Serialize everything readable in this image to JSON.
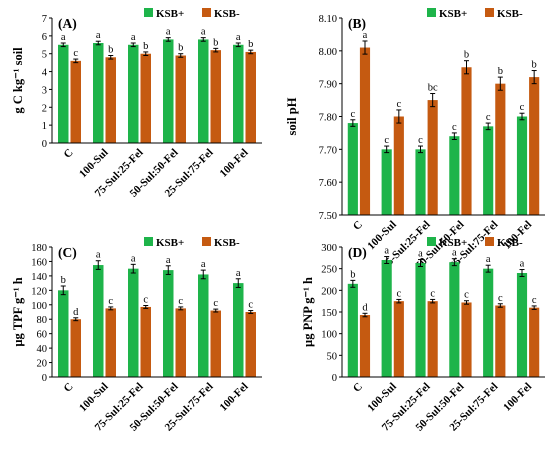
{
  "colors": {
    "ksb_plus": "#1eb44a",
    "ksb_minus": "#c55a11"
  },
  "categories": [
    "C",
    "100-Sul",
    "75-Sul:25-Fel",
    "50-Sul:50-Fel",
    "25-Sul:75-Fel",
    "100-Fel"
  ],
  "chart_data": [
    {
      "panel": "(A)",
      "type": "bar",
      "ylabel": "g C kg⁻¹ soil",
      "ylim": [
        0,
        7
      ],
      "yticks": [
        "0",
        "1",
        "2",
        "3",
        "4",
        "5",
        "6",
        "7"
      ],
      "legend_position": "top-right",
      "series": [
        {
          "name": "KSB+",
          "values": [
            5.5,
            5.6,
            5.5,
            5.8,
            5.8,
            5.5
          ],
          "errors": [
            0.1,
            0.1,
            0.1,
            0.1,
            0.1,
            0.1
          ],
          "letters": [
            "a",
            "a",
            "a",
            "a",
            "a",
            "a"
          ]
        },
        {
          "name": "KSB-",
          "values": [
            4.6,
            4.8,
            5.0,
            4.9,
            5.2,
            5.1
          ],
          "errors": [
            0.1,
            0.1,
            0.1,
            0.1,
            0.1,
            0.1
          ],
          "letters": [
            "c",
            "b",
            "b",
            "b",
            "b",
            "b"
          ]
        }
      ]
    },
    {
      "panel": "(B)",
      "type": "bar",
      "ylabel": "soil pH",
      "ylim": [
        7.5,
        8.1
      ],
      "yticks": [
        "7.50",
        "7.60",
        "7.70",
        "7.80",
        "7.90",
        "8.00",
        "8.10"
      ],
      "legend_position": "top-right",
      "series": [
        {
          "name": "KSB+",
          "values": [
            7.78,
            7.7,
            7.7,
            7.74,
            7.77,
            7.8
          ],
          "errors": [
            0.01,
            0.01,
            0.01,
            0.01,
            0.01,
            0.01
          ],
          "letters": [
            "c",
            "c",
            "c",
            "c",
            "c",
            "c"
          ]
        },
        {
          "name": "KSB-",
          "values": [
            8.01,
            7.8,
            7.85,
            7.95,
            7.9,
            7.92
          ],
          "errors": [
            0.02,
            0.02,
            0.02,
            0.02,
            0.02,
            0.02
          ],
          "letters": [
            "a",
            "c",
            "bc",
            "b",
            "b",
            "b"
          ]
        }
      ]
    },
    {
      "panel": "(C)",
      "type": "bar",
      "ylabel": "µg TPF g⁻¹ h",
      "ylim": [
        0,
        180
      ],
      "yticks": [
        "0",
        "20",
        "40",
        "60",
        "80",
        "100",
        "120",
        "140",
        "160",
        "180"
      ],
      "legend_position": "top-right",
      "series": [
        {
          "name": "KSB+",
          "values": [
            120,
            155,
            150,
            148,
            142,
            130
          ],
          "errors": [
            6,
            6,
            6,
            6,
            6,
            6
          ],
          "letters": [
            "b",
            "a",
            "a",
            "a",
            "a",
            "a"
          ]
        },
        {
          "name": "KSB-",
          "values": [
            80,
            95,
            97,
            95,
            92,
            90
          ],
          "errors": [
            2,
            2,
            2,
            2,
            2,
            2
          ],
          "letters": [
            "d",
            "c",
            "c",
            "c",
            "c",
            "c"
          ]
        }
      ]
    },
    {
      "panel": "(D)",
      "type": "bar",
      "ylabel": "µg PNP g⁻¹ h",
      "ylim": [
        0,
        300
      ],
      "yticks": [
        "0",
        "50",
        "100",
        "150",
        "200",
        "250",
        "300"
      ],
      "legend_position": "top-right",
      "series": [
        {
          "name": "KSB+",
          "values": [
            215,
            270,
            263,
            265,
            250,
            240
          ],
          "errors": [
            8,
            8,
            8,
            8,
            8,
            8
          ],
          "letters": [
            "b",
            "a",
            "a",
            "a",
            "a",
            "a"
          ]
        },
        {
          "name": "KSB-",
          "values": [
            143,
            175,
            175,
            172,
            165,
            160
          ],
          "errors": [
            4,
            4,
            4,
            4,
            4,
            4
          ],
          "letters": [
            "d",
            "c",
            "c",
            "c",
            "c",
            "c"
          ]
        }
      ]
    }
  ]
}
